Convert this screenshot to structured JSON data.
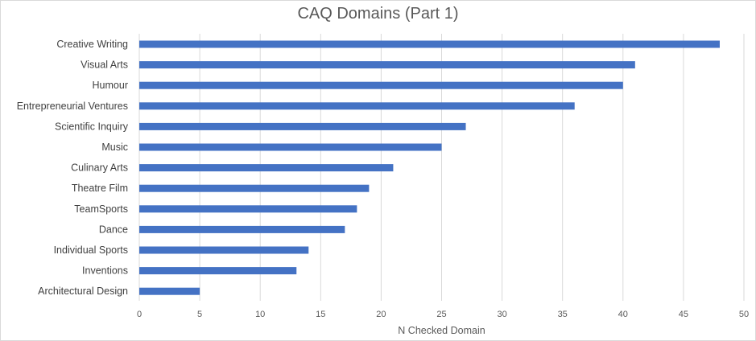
{
  "chart_data": {
    "type": "bar",
    "orientation": "horizontal",
    "title": "CAQ Domains (Part 1)",
    "xlabel": "N Checked Domain",
    "ylabel": "",
    "xlim": [
      0,
      50
    ],
    "xticks": [
      0,
      5,
      10,
      15,
      20,
      25,
      30,
      35,
      40,
      45,
      50
    ],
    "grid": "vertical",
    "bar_color": "#4472C4",
    "categories": [
      "Creative Writing",
      "Visual Arts",
      "Humour",
      "Entrepreneurial Ventures",
      "Scientific Inquiry",
      "Music",
      "Culinary Arts",
      "Theatre Film",
      "TeamSports",
      "Dance",
      "Individual Sports",
      "Inventions",
      "Architectural Design"
    ],
    "values": [
      48,
      41,
      40,
      36,
      27,
      25,
      21,
      19,
      18,
      17,
      14,
      13,
      5
    ]
  }
}
